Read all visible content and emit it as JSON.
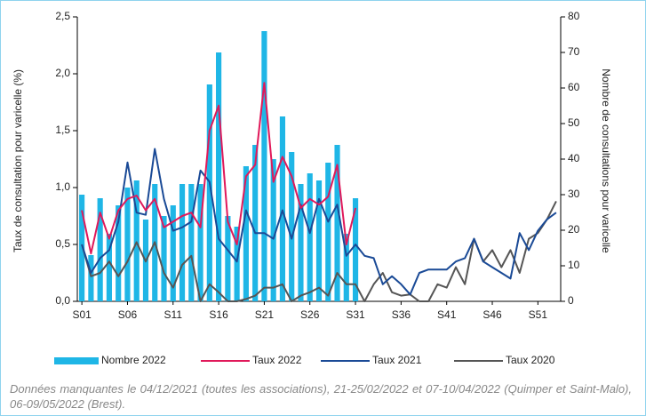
{
  "chart_data": {
    "type": "bar-line",
    "ylabel": "Taux de consultation pour varicelle (%)",
    "y2label": "Nombre de consultations pour varicelle",
    "categories": [
      "S01",
      null,
      null,
      null,
      null,
      "S06",
      null,
      null,
      null,
      null,
      "S11",
      null,
      null,
      null,
      null,
      "S16",
      null,
      null,
      null,
      null,
      "S21",
      null,
      null,
      null,
      null,
      "S26",
      null,
      null,
      null,
      null,
      "S31",
      null,
      null,
      null,
      null,
      "S36",
      null,
      null,
      null,
      null,
      "S41",
      null,
      null,
      null,
      null,
      "S46",
      null,
      null,
      null,
      null,
      "S51",
      null,
      null
    ],
    "ylim": [
      0,
      2.5
    ],
    "yticks": [
      {
        "value": 0,
        "label": "0,0"
      },
      {
        "value": 0.5,
        "label": "0,5"
      },
      {
        "value": 1,
        "label": "1,0"
      },
      {
        "value": 1.5,
        "label": "1,5"
      },
      {
        "value": 2,
        "label": "2,0"
      },
      {
        "value": 2.5,
        "label": "2,5"
      }
    ],
    "y2lim": [
      0,
      80
    ],
    "y2ticks": [
      0,
      10,
      20,
      30,
      40,
      50,
      60,
      70,
      80
    ],
    "series": [
      {
        "name": "Nombre 2022",
        "type": "bar",
        "axis": "y2",
        "color": "#1fb6e6",
        "values": [
          30,
          13,
          29,
          19,
          27,
          32,
          34,
          23,
          33,
          24,
          27,
          33,
          33,
          33,
          61,
          70,
          24,
          21,
          38,
          44,
          76,
          40,
          52,
          42,
          33,
          36,
          34,
          39,
          44,
          19,
          29,
          null,
          null,
          null,
          null,
          null,
          null,
          null,
          null,
          null,
          null,
          null,
          null,
          null,
          null,
          null,
          null,
          null,
          null,
          null,
          null,
          null,
          null
        ]
      },
      {
        "name": "Taux 2022",
        "type": "line",
        "color": "#e0195a",
        "values": [
          0.8,
          0.42,
          0.78,
          0.55,
          0.8,
          0.9,
          0.93,
          0.8,
          0.9,
          0.65,
          0.7,
          0.75,
          0.78,
          0.65,
          1.5,
          1.72,
          0.7,
          0.5,
          1.1,
          1.2,
          1.92,
          1.05,
          1.27,
          1.1,
          0.82,
          0.9,
          0.85,
          0.92,
          1.2,
          0.5,
          0.82,
          null,
          null,
          null,
          null,
          null,
          null,
          null,
          null,
          null,
          null,
          null,
          null,
          null,
          null,
          null,
          null,
          null,
          null,
          null,
          null,
          null,
          null
        ]
      },
      {
        "name": "Taux 2021",
        "type": "line",
        "color": "#1a4a96",
        "values": [
          0.5,
          0.25,
          0.38,
          0.45,
          0.7,
          1.22,
          0.78,
          0.76,
          1.34,
          0.9,
          0.62,
          0.65,
          0.7,
          1.15,
          1.05,
          0.55,
          0.45,
          0.35,
          0.8,
          0.6,
          0.6,
          0.55,
          0.8,
          0.55,
          0.85,
          0.6,
          0.9,
          0.7,
          0.85,
          0.4,
          0.5,
          0.4,
          0.38,
          0.15,
          0.22,
          0.15,
          0.06,
          0.25,
          0.28,
          0.28,
          0.28,
          0.35,
          0.38,
          0.55,
          0.35,
          0.3,
          0.25,
          0.2,
          0.6,
          0.45,
          0.62,
          0.72,
          0.78
        ]
      },
      {
        "name": "Taux 2020",
        "type": "line",
        "color": "#555555",
        "values": [
          0.5,
          0.22,
          0.25,
          0.35,
          0.22,
          0.35,
          0.52,
          0.35,
          0.52,
          0.25,
          0.12,
          0.32,
          0.4,
          0,
          0.15,
          0.08,
          0,
          0,
          0.02,
          0.05,
          0.12,
          0.12,
          0.15,
          0,
          0.05,
          0.08,
          0.12,
          0.05,
          0.25,
          0.15,
          0.15,
          0,
          0.15,
          0.25,
          0.08,
          0.05,
          0.06,
          0,
          0,
          0.15,
          0.12,
          0.3,
          0.15,
          0.55,
          0.35,
          0.45,
          0.3,
          0.45,
          0.25,
          0.55,
          0.6,
          0.72,
          0.88
        ]
      }
    ],
    "note": "Données manquantes le 04/12/2021 (toutes les associations), 21-25/02/2022 et 07-10/04/2022 (Quimper et Saint-Malo), 06-09/05/2022 (Brest)."
  }
}
